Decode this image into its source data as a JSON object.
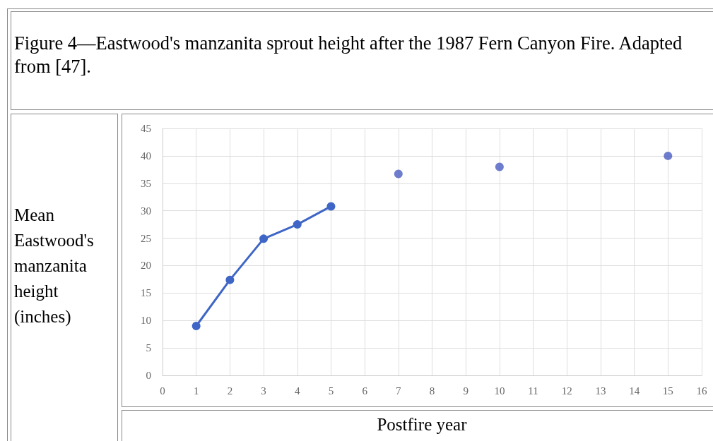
{
  "chart_data": {
    "type": "line",
    "title": "Figure 4—Eastwood's manzanita sprout height after the 1987 Fern Canyon Fire. Adapted from [47].",
    "xlabel": "Postfire year",
    "ylabel": "Mean Eastwood's manzanita height (inches)",
    "series": [
      {
        "type": "line",
        "color": "#3f66c6",
        "x": [
          1,
          2,
          3,
          4,
          5
        ],
        "values": [
          9,
          17.4,
          24.9,
          27.5,
          30.8
        ]
      },
      {
        "type": "scatter",
        "color": "#4a5cc0",
        "x": [
          7,
          10,
          15
        ],
        "values": [
          36.7,
          38,
          40
        ]
      }
    ],
    "xlim": [
      0,
      16
    ],
    "xticks": [
      0,
      1,
      2,
      3,
      4,
      5,
      6,
      7,
      8,
      9,
      10,
      11,
      12,
      13,
      14,
      15,
      16
    ],
    "ylim": [
      0,
      45
    ],
    "yticks": [
      0,
      5,
      10,
      15,
      20,
      25,
      30,
      35,
      40,
      45
    ],
    "grid": true,
    "marker": "circle",
    "line_style": "solid"
  }
}
